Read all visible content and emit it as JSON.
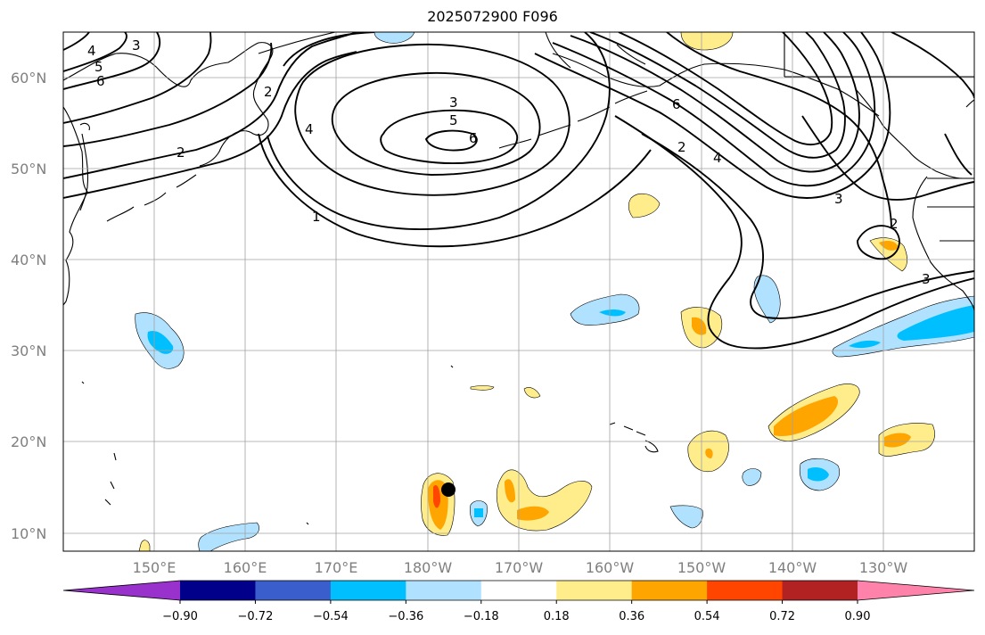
{
  "title": "2025072900 F096",
  "lat_ticks": [
    "60°N",
    "50°N",
    "40°N",
    "30°N",
    "20°N",
    "10°N"
  ],
  "lon_ticks": [
    "150°E",
    "160°E",
    "170°E",
    "180°W",
    "170°W",
    "160°W",
    "150°W",
    "140°W",
    "130°W"
  ],
  "colorbar": {
    "colors": [
      "#9932cc",
      "#00008b",
      "#3a5fcd",
      "#00bfff",
      "#b0e2ff",
      "#ffffff",
      "#ffec8b",
      "#ffa500",
      "#ff4500",
      "#b22222",
      "#ff82ab"
    ],
    "tick_labels": [
      "−0.90",
      "−0.72",
      "−0.54",
      "−0.36",
      "−0.18",
      "0.18",
      "0.36",
      "0.54",
      "0.72",
      "0.90"
    ]
  },
  "contour_labels": [
    "4",
    "5",
    "6",
    "3",
    "2",
    "3",
    "5",
    "6",
    "4",
    "2",
    "1",
    "2",
    "4",
    "6",
    "3",
    "2",
    "3"
  ],
  "colors": {
    "land_outline": "#000000",
    "grid": "#a0a0a0",
    "contour": "#000000",
    "marker": "#000000"
  }
}
